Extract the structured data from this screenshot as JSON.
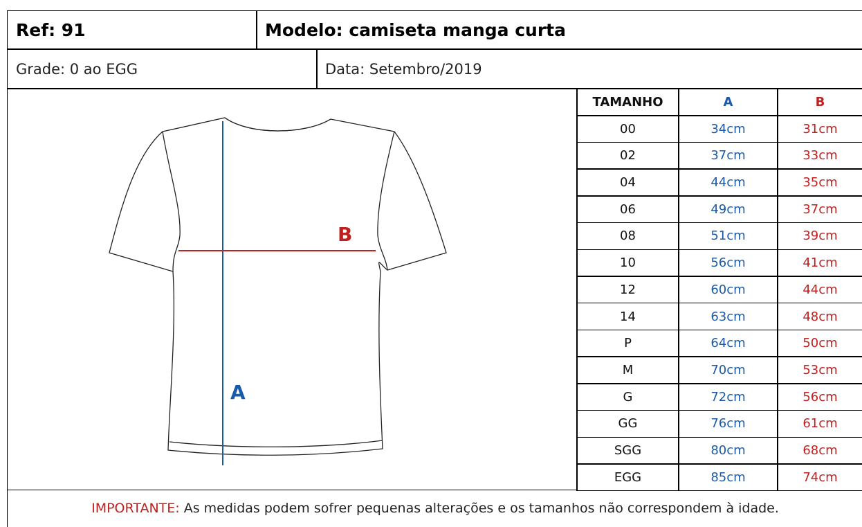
{
  "header": {
    "ref": "Ref: 91",
    "model": "Modelo: camiseta manga curta"
  },
  "info": {
    "grade": "Grade: 0 ao EGG",
    "date": "Data: Setembro/2019"
  },
  "figure": {
    "label_a": "A",
    "label_b": "B"
  },
  "table": {
    "headers": [
      "TAMANHO",
      "A",
      "B"
    ],
    "rows": [
      [
        "00",
        "34cm",
        "31cm"
      ],
      [
        "02",
        "37cm",
        "33cm"
      ],
      [
        "04",
        "44cm",
        "35cm"
      ],
      [
        "06",
        "49cm",
        "37cm"
      ],
      [
        "08",
        "51cm",
        "39cm"
      ],
      [
        "10",
        "56cm",
        "41cm"
      ],
      [
        "12",
        "60cm",
        "44cm"
      ],
      [
        "14",
        "63cm",
        "48cm"
      ],
      [
        "P",
        "64cm",
        "50cm"
      ],
      [
        "M",
        "70cm",
        "53cm"
      ],
      [
        "G",
        "72cm",
        "56cm"
      ],
      [
        "GG",
        "76cm",
        "61cm"
      ],
      [
        "SGG",
        "80cm",
        "68cm"
      ],
      [
        "EGG",
        "85cm",
        "74cm"
      ]
    ]
  },
  "footer": {
    "important": "IMPORTANTE:",
    "note": "As medidas podem sofrer pequenas alterações e os tamanhos não correspondem à idade."
  }
}
